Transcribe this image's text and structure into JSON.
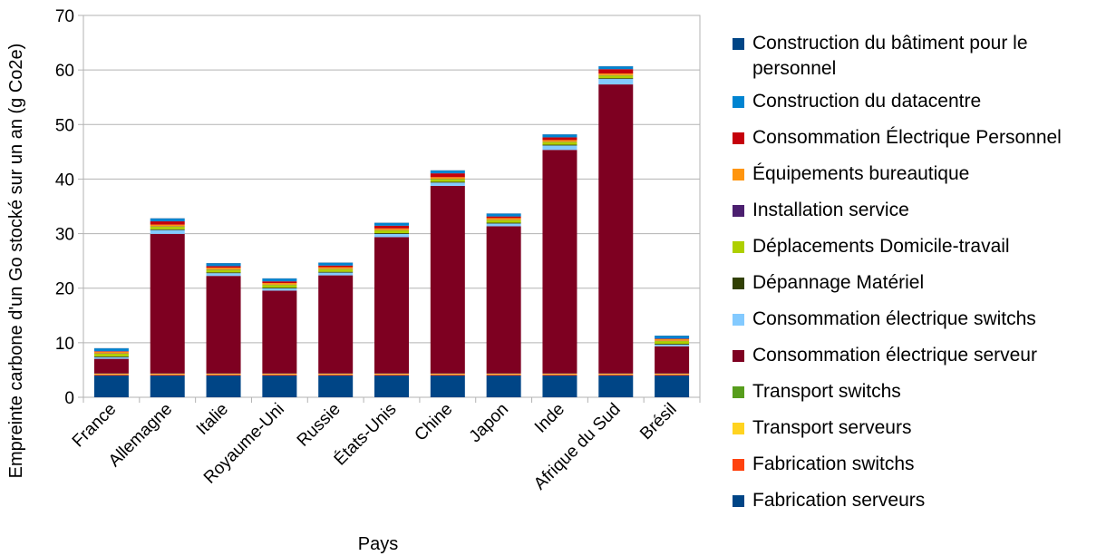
{
  "chart_data": {
    "type": "bar",
    "stacked": true,
    "xlabel": "Pays",
    "ylabel": "Empreinte carbone d'un Go stocké sur un an (g Co2e)",
    "ylim": [
      0,
      70
    ],
    "yticks": [
      0,
      10,
      20,
      30,
      40,
      50,
      60,
      70
    ],
    "grid": true,
    "legend_position": "right",
    "categories": [
      "France",
      "Allemagne",
      "Italie",
      "Royaume-Uni",
      "Russie",
      "États-Unis",
      "Chine",
      "Japon",
      "Inde",
      "Afrique du Sud",
      "Brésil"
    ],
    "series": [
      {
        "name": "Fabrication serveurs",
        "color": "#004586",
        "values": [
          4.0,
          4.0,
          4.0,
          4.0,
          4.0,
          4.0,
          4.0,
          4.0,
          4.0,
          4.0,
          4.0
        ]
      },
      {
        "name": "Fabrication switchs",
        "color": "#ff420e",
        "values": [
          0.2,
          0.2,
          0.2,
          0.2,
          0.2,
          0.2,
          0.2,
          0.2,
          0.2,
          0.2,
          0.2
        ]
      },
      {
        "name": "Transport serveurs",
        "color": "#ffd320",
        "values": [
          0.1,
          0.1,
          0.1,
          0.1,
          0.1,
          0.1,
          0.1,
          0.1,
          0.1,
          0.1,
          0.1
        ]
      },
      {
        "name": "Transport switchs",
        "color": "#579d1c",
        "values": [
          0.05,
          0.05,
          0.05,
          0.05,
          0.05,
          0.05,
          0.05,
          0.05,
          0.05,
          0.05,
          0.05
        ]
      },
      {
        "name": "Consommation électrique serveur",
        "color": "#7e0021",
        "values": [
          2.7,
          25.6,
          17.9,
          15.2,
          18.0,
          25.0,
          34.4,
          27.0,
          41.0,
          53.0,
          5.0
        ]
      },
      {
        "name": "Consommation électrique switchs",
        "color": "#83caff",
        "values": [
          0.3,
          0.7,
          0.5,
          0.4,
          0.5,
          0.6,
          0.6,
          0.5,
          0.8,
          1.0,
          0.3
        ]
      },
      {
        "name": "Dépannage Matériel",
        "color": "#314004",
        "values": [
          0.15,
          0.15,
          0.15,
          0.15,
          0.15,
          0.15,
          0.15,
          0.15,
          0.15,
          0.15,
          0.15
        ]
      },
      {
        "name": "Déplacements Domicile-travail",
        "color": "#aecf00",
        "values": [
          0.5,
          0.5,
          0.5,
          0.5,
          0.5,
          0.5,
          0.5,
          0.5,
          0.5,
          0.5,
          0.5
        ]
      },
      {
        "name": "Installation service",
        "color": "#4b1f6f",
        "values": [
          0.05,
          0.05,
          0.05,
          0.05,
          0.05,
          0.05,
          0.05,
          0.05,
          0.05,
          0.05,
          0.05
        ]
      },
      {
        "name": "Équipements bureautique",
        "color": "#ff950e",
        "values": [
          0.3,
          0.3,
          0.3,
          0.3,
          0.3,
          0.3,
          0.3,
          0.3,
          0.3,
          0.3,
          0.3
        ]
      },
      {
        "name": "Consommation Électrique Personnel",
        "color": "#c5000b",
        "values": [
          0.1,
          0.6,
          0.3,
          0.3,
          0.3,
          0.5,
          0.7,
          0.3,
          0.5,
          0.8,
          0.1
        ]
      },
      {
        "name": "Construction du datacentre",
        "color": "#0084d1",
        "values": [
          0.5,
          0.5,
          0.5,
          0.5,
          0.5,
          0.5,
          0.5,
          0.5,
          0.5,
          0.5,
          0.5
        ]
      },
      {
        "name": "Construction du bâtiment pour le personnel",
        "color": "#004586",
        "values": [
          0.05,
          0.05,
          0.05,
          0.05,
          0.05,
          0.05,
          0.05,
          0.05,
          0.05,
          0.05,
          0.05
        ]
      }
    ]
  }
}
